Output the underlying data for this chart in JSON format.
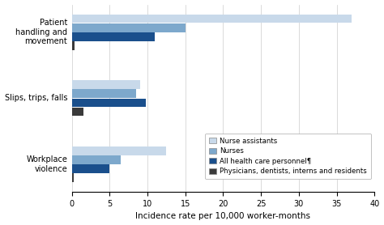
{
  "categories": [
    "Workplace\nviolence",
    "Slips, trips, falls",
    "Patient\nhandling and\nmovement"
  ],
  "series": {
    "Nurse assistants": [
      12.5,
      9.0,
      37.0
    ],
    "Nurses": [
      6.5,
      8.5,
      15.0
    ],
    "All health care personnel": [
      5.0,
      9.8,
      11.0
    ],
    "Physicians, dentists, interns and residents": [
      0.3,
      1.5,
      0.4
    ]
  },
  "colors": {
    "Nurse assistants": "#c8d9ea",
    "Nurses": "#7da8cc",
    "All health care personnel": "#1a4f8c",
    "Physicians, dentists, interns and residents": "#3a3a3a"
  },
  "legend_labels": [
    "Nurse assistants",
    "Nurses",
    "All health care personnel¶",
    "Physicians, dentists, interns and residents"
  ],
  "xlabel": "Incidence rate per 10,000 worker-months",
  "xlim": [
    0,
    40
  ],
  "xticks": [
    0,
    5,
    10,
    15,
    20,
    25,
    30,
    35,
    40
  ],
  "figsize": [
    4.74,
    2.78
  ],
  "dpi": 100
}
